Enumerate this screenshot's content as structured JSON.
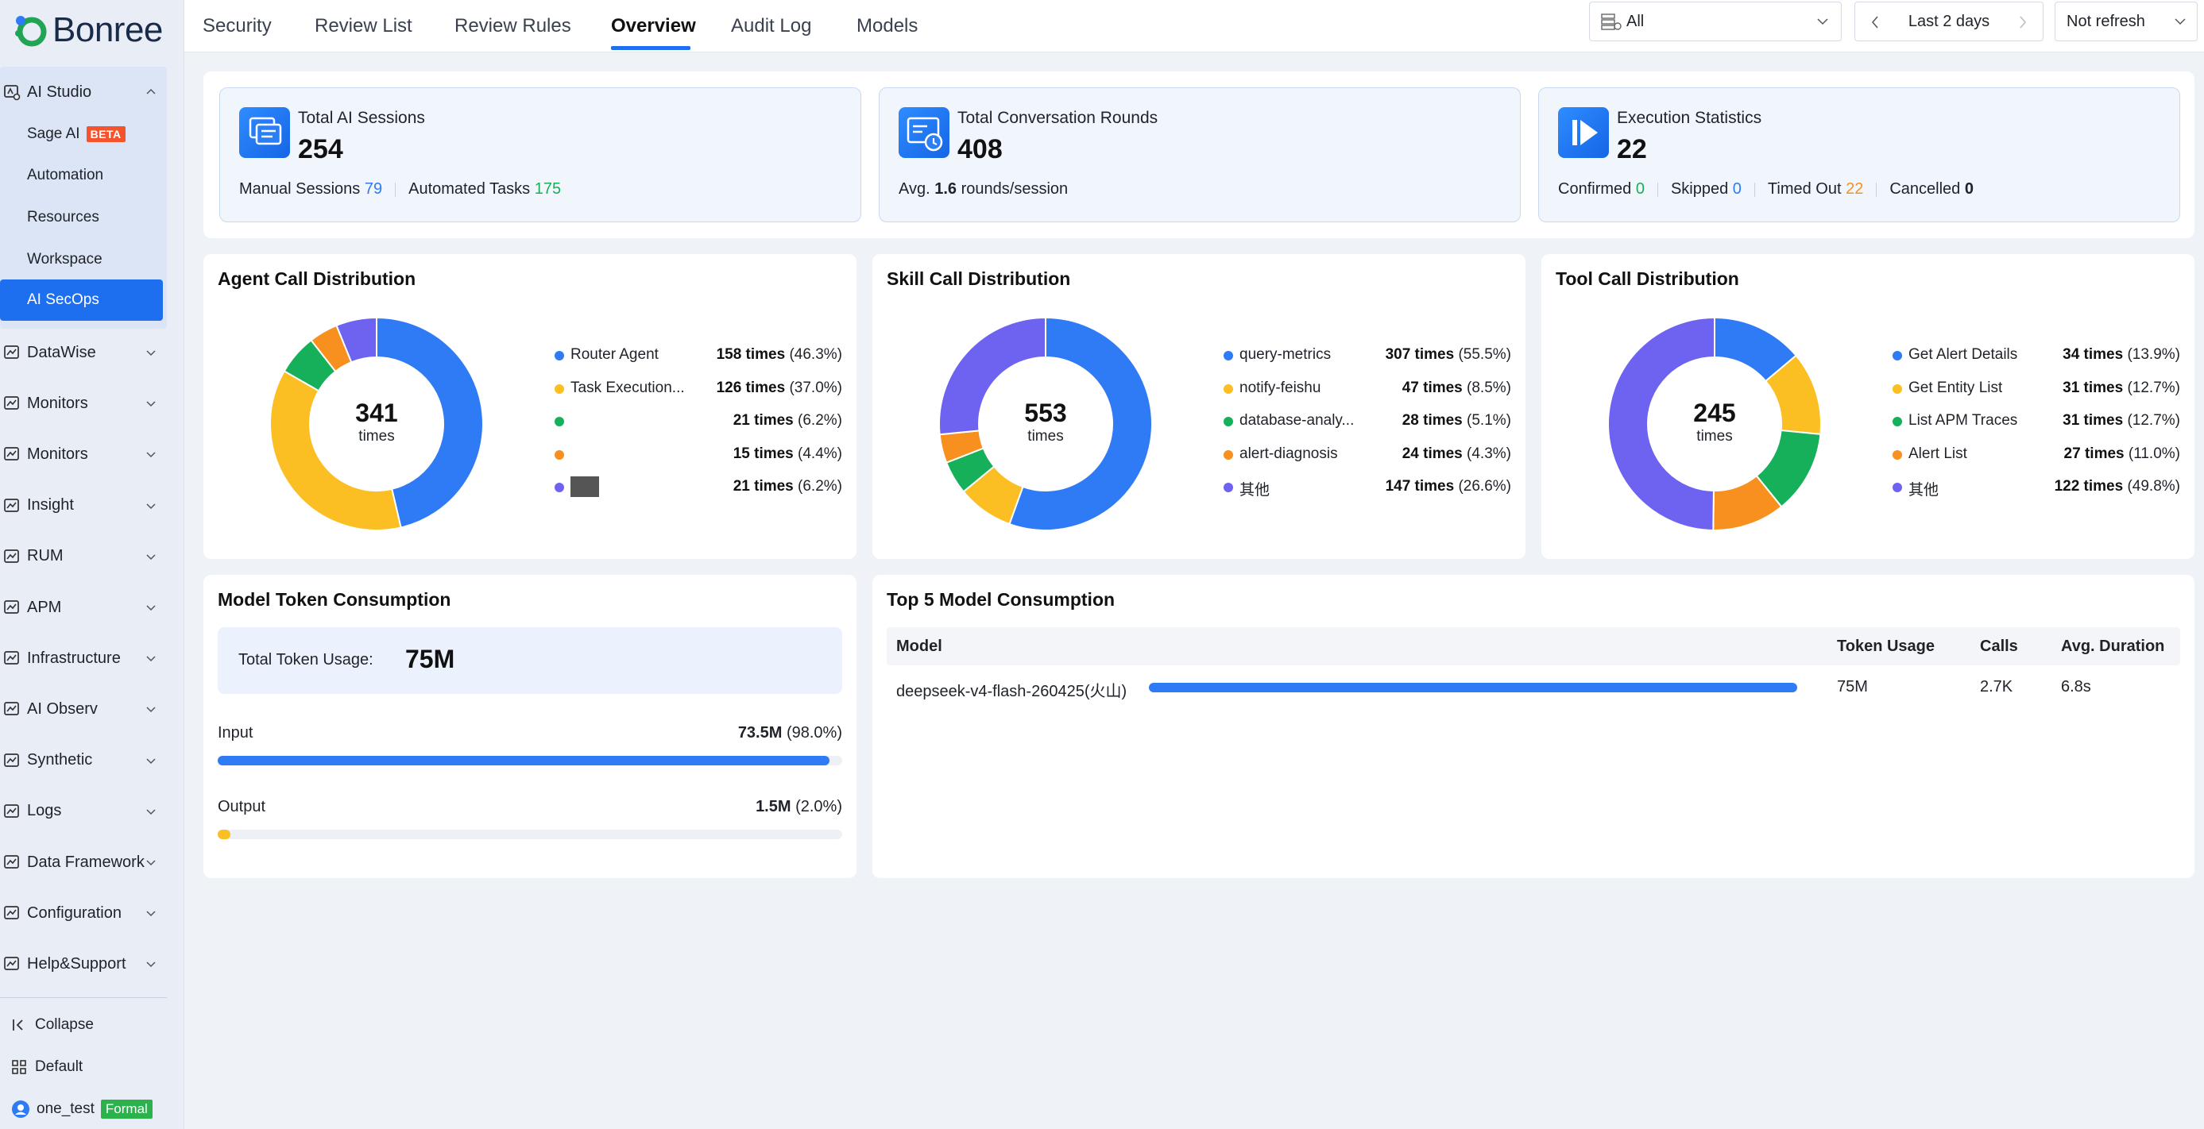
{
  "brand": {
    "name": "Bonree"
  },
  "sidebar": {
    "ai_studio": {
      "label": "AI Studio",
      "items": [
        {
          "label": "Sage AI",
          "badge": "BETA"
        },
        {
          "label": "Automation"
        },
        {
          "label": "Resources"
        },
        {
          "label": "Workspace"
        },
        {
          "label": "AI SecOps"
        }
      ]
    },
    "groups": [
      {
        "label": "DataWise"
      },
      {
        "label": "Monitors"
      },
      {
        "label": "Monitors"
      },
      {
        "label": "Insight"
      },
      {
        "label": "RUM"
      },
      {
        "label": "APM"
      },
      {
        "label": "Infrastructure"
      },
      {
        "label": "AI Observ"
      },
      {
        "label": "Synthetic"
      },
      {
        "label": "Logs"
      },
      {
        "label": "Data Framework"
      },
      {
        "label": "Configuration"
      },
      {
        "label": "Help&Support"
      }
    ],
    "collapse_label": "Collapse",
    "default_label": "Default",
    "user": {
      "name": "one_test",
      "badge": "Formal"
    }
  },
  "tabs": [
    {
      "label": "Security"
    },
    {
      "label": "Review List"
    },
    {
      "label": "Review Rules"
    },
    {
      "label": "Overview"
    },
    {
      "label": "Audit Log"
    },
    {
      "label": "Models"
    }
  ],
  "controls": {
    "scope_select": "All",
    "time_range": "Last 2 days",
    "refresh": "Not refresh"
  },
  "stats": {
    "sessions": {
      "label": "Total AI Sessions",
      "value": "254",
      "manual_label": "Manual Sessions",
      "manual_value": "79",
      "automated_label": "Automated Tasks",
      "automated_value": "175"
    },
    "rounds": {
      "label": "Total Conversation Rounds",
      "value": "408",
      "avg_prefix": "Avg.",
      "avg_value": "1.6",
      "avg_suffix": "rounds/session"
    },
    "execution": {
      "label": "Execution Statistics",
      "value": "22",
      "confirmed_label": "Confirmed",
      "confirmed_value": "0",
      "skipped_label": "Skipped",
      "skipped_value": "0",
      "timedout_label": "Timed Out",
      "timedout_value": "22",
      "cancelled_label": "Cancelled",
      "cancelled_value": "0"
    }
  },
  "colors": {
    "blue": "#2f7af5",
    "yellow": "#fbbf24",
    "green": "#16b05a",
    "orange": "#f7901e",
    "purple": "#6e63f0",
    "accent": "#1e6ff0"
  },
  "chart_data": [
    {
      "type": "pie",
      "title": "Agent Call Distribution",
      "total": "341",
      "unit": "times",
      "slices": [
        {
          "name": "Router Agent",
          "value": 158,
          "times": "158 times",
          "pct": "(46.3%)",
          "color": "#2f7af5"
        },
        {
          "name": "Task Execution...",
          "value": 126,
          "times": "126 times",
          "pct": "(37.0%)",
          "color": "#fbbf24"
        },
        {
          "name": "",
          "value": 21,
          "times": "21 times",
          "pct": "(6.2%)",
          "color": "#16b05a"
        },
        {
          "name": "",
          "value": 15,
          "times": "15 times",
          "pct": "(4.4%)",
          "color": "#f7901e"
        },
        {
          "name": "",
          "value": 21,
          "times": "21 times",
          "pct": "(6.2%)",
          "color": "#6e63f0"
        }
      ]
    },
    {
      "type": "pie",
      "title": "Skill Call Distribution",
      "total": "553",
      "unit": "times",
      "slices": [
        {
          "name": "query-metrics",
          "value": 307,
          "times": "307 times",
          "pct": "(55.5%)",
          "color": "#2f7af5"
        },
        {
          "name": "notify-feishu",
          "value": 47,
          "times": "47 times",
          "pct": "(8.5%)",
          "color": "#fbbf24"
        },
        {
          "name": "database-analy...",
          "value": 28,
          "times": "28 times",
          "pct": "(5.1%)",
          "color": "#16b05a"
        },
        {
          "name": "alert-diagnosis",
          "value": 24,
          "times": "24 times",
          "pct": "(4.3%)",
          "color": "#f7901e"
        },
        {
          "name": "其他",
          "value": 147,
          "times": "147 times",
          "pct": "(26.6%)",
          "color": "#6e63f0"
        }
      ]
    },
    {
      "type": "pie",
      "title": "Tool Call Distribution",
      "total": "245",
      "unit": "times",
      "slices": [
        {
          "name": "Get Alert Details",
          "value": 34,
          "times": "34 times",
          "pct": "(13.9%)",
          "color": "#2f7af5"
        },
        {
          "name": "Get Entity List",
          "value": 31,
          "times": "31 times",
          "pct": "(12.7%)",
          "color": "#fbbf24"
        },
        {
          "name": "List APM Traces",
          "value": 31,
          "times": "31 times",
          "pct": "(12.7%)",
          "color": "#16b05a"
        },
        {
          "name": "Alert List",
          "value": 27,
          "times": "27 times",
          "pct": "(11.0%)",
          "color": "#f7901e"
        },
        {
          "name": "其他",
          "value": 122,
          "times": "122 times",
          "pct": "(49.8%)",
          "color": "#6e63f0"
        }
      ]
    }
  ],
  "token": {
    "title": "Model Token Consumption",
    "total_label": "Total Token Usage:",
    "total_value": "75M",
    "input": {
      "label": "Input",
      "value": "73.5M",
      "pct": "(98.0%)",
      "fraction": 0.98
    },
    "output": {
      "label": "Output",
      "value": "1.5M",
      "pct": "(2.0%)",
      "fraction": 0.02
    }
  },
  "top_models": {
    "title": "Top 5 Model Consumption",
    "headers": {
      "model": "Model",
      "tokens": "Token Usage",
      "calls": "Calls",
      "duration": "Avg. Duration"
    },
    "rows": [
      {
        "model": "deepseek-v4-flash-260425(火山)",
        "tokens": "75M",
        "calls": "2.7K",
        "duration": "6.8s",
        "fraction": 1.0
      }
    ]
  }
}
